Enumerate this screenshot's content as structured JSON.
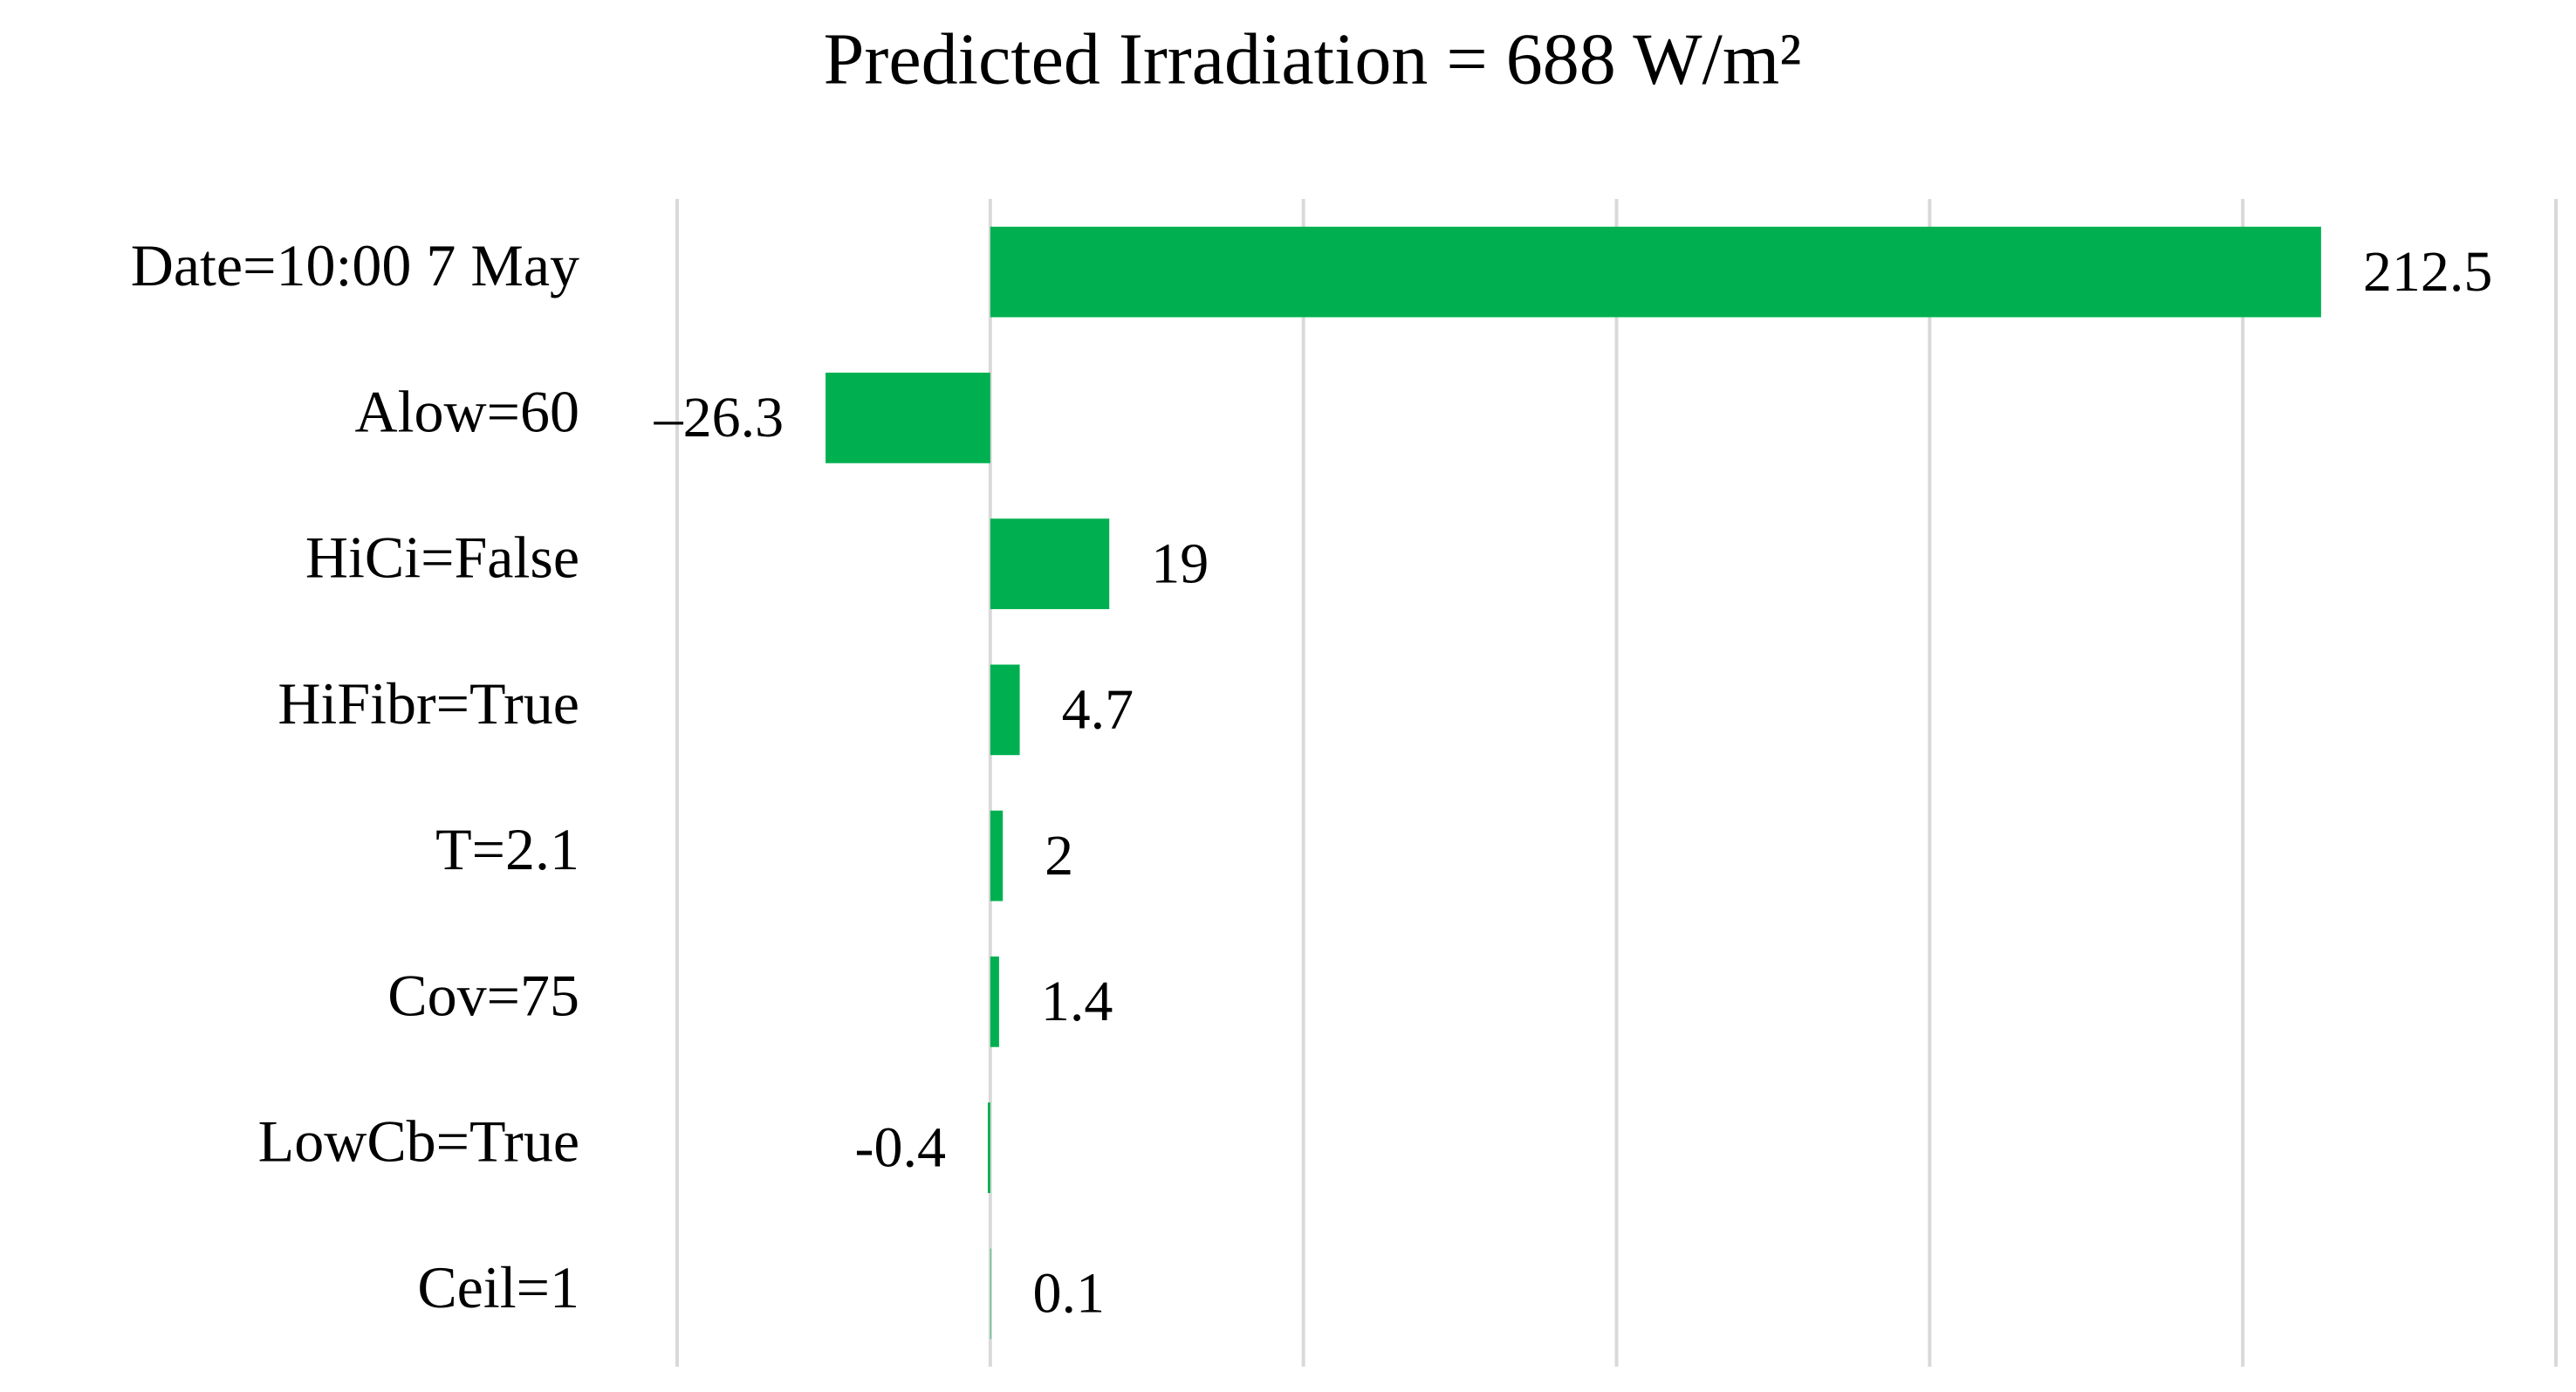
{
  "chart_data": {
    "type": "hbar",
    "title": "Predicted Irradiation = 688 W/m²",
    "categories": [
      "Date=10:00 7 May",
      "Alow=60",
      "HiCi=False",
      "HiFibr=True",
      "T=2.1",
      "Cov=75",
      "LowCb=True",
      "Ceil=1"
    ],
    "values": [
      212.5,
      -26.3,
      19,
      4.7,
      2,
      1.4,
      -0.4,
      0.1
    ],
    "value_labels": [
      "212.5",
      "–26.3",
      "19",
      "4.7",
      "2",
      "1.4",
      "-0.4",
      "0.1"
    ],
    "color": "#00b050",
    "xlim": [
      -50,
      250
    ],
    "xticks": [
      -50,
      0,
      50,
      100,
      150,
      200,
      250
    ],
    "grid": true
  }
}
